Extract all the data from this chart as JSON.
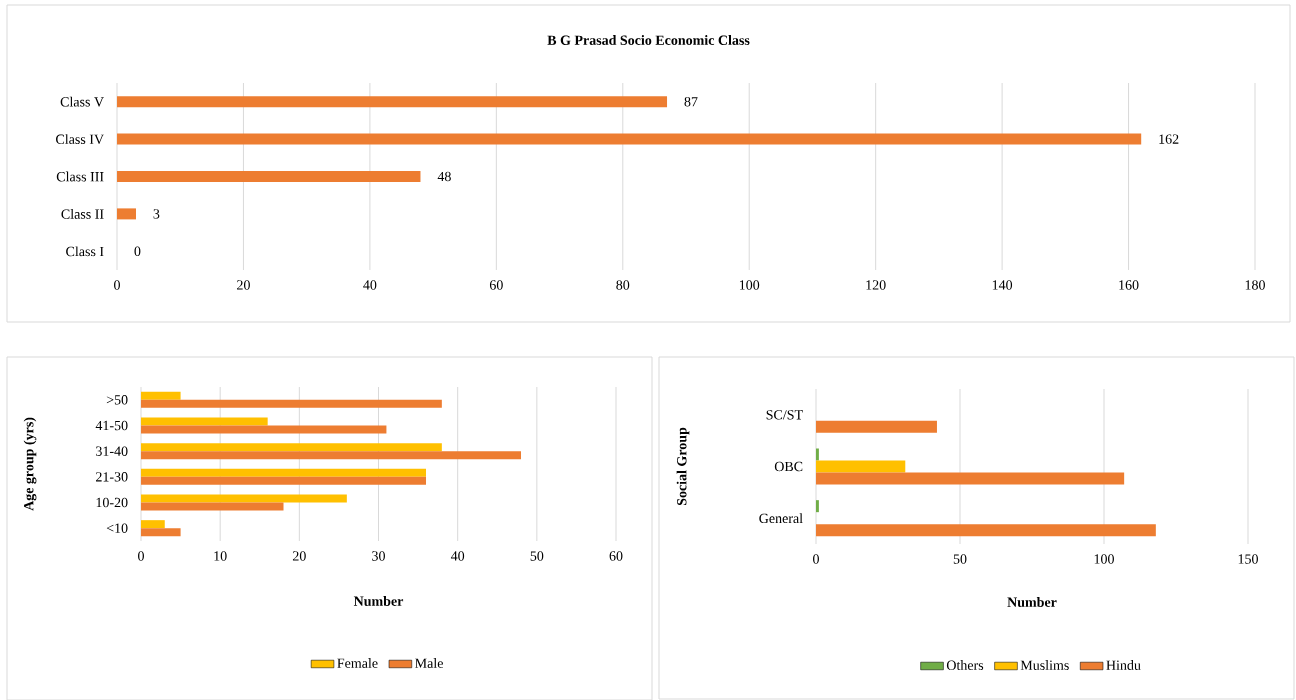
{
  "chart_data": [
    {
      "type": "bar",
      "orientation": "horizontal",
      "title": "B G Prasad Socio Economic Class",
      "categories": [
        "Class V",
        "Class IV",
        "Class III",
        "Class II",
        "Class I"
      ],
      "values": [
        87,
        162,
        48,
        3,
        0
      ],
      "color": "#ed7d31",
      "xlim": [
        0,
        180
      ],
      "xticks": [
        0,
        20,
        40,
        60,
        80,
        100,
        120,
        140,
        160,
        180
      ],
      "grid": "x",
      "data_labels": true
    },
    {
      "type": "bar",
      "orientation": "horizontal",
      "categories": [
        ">50",
        "41-50",
        "31-40",
        "21-30",
        "10-20",
        "<10"
      ],
      "xlabel": "Number",
      "ylabel": "Age group (yrs)",
      "xlim": [
        0,
        60
      ],
      "xticks": [
        0,
        10,
        20,
        30,
        40,
        50,
        60
      ],
      "grid": "x",
      "legend": "bottom",
      "series": [
        {
          "name": "Female",
          "color": "#ffc000",
          "values": [
            5,
            16,
            38,
            36,
            26,
            3
          ]
        },
        {
          "name": "Male",
          "color": "#ed7d31",
          "values": [
            38,
            31,
            48,
            36,
            18,
            5
          ]
        }
      ]
    },
    {
      "type": "bar",
      "orientation": "horizontal",
      "categories": [
        "SC/ST",
        "OBC",
        "General"
      ],
      "xlabel": "Number",
      "ylabel": "Social Group",
      "xlim": [
        0,
        150
      ],
      "xticks": [
        0,
        50,
        100,
        150
      ],
      "grid": "x",
      "legend": "bottom",
      "series": [
        {
          "name": "Others",
          "color": "#70ad47",
          "values": [
            0,
            1,
            1
          ]
        },
        {
          "name": "Muslims",
          "color": "#ffc000",
          "values": [
            0,
            31,
            0
          ]
        },
        {
          "name": "Hindu",
          "color": "#ed7d31",
          "values": [
            42,
            107,
            118
          ]
        }
      ]
    }
  ]
}
